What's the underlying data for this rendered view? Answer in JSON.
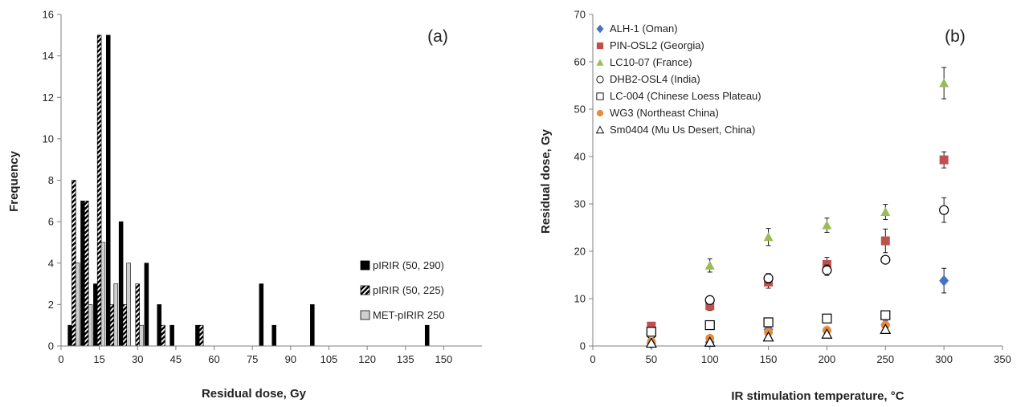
{
  "chart_data": [
    {
      "type": "bar",
      "panel_label": "(a)",
      "xlabel": "Residual dose, Gy",
      "ylabel": "Frequency",
      "xlim": [
        0,
        165
      ],
      "ylim": [
        0,
        16
      ],
      "xticks": [
        0,
        15,
        30,
        45,
        60,
        75,
        90,
        105,
        120,
        135,
        150
      ],
      "yticks": [
        0,
        2,
        4,
        6,
        8,
        10,
        12,
        14,
        16
      ],
      "legend_position": "right",
      "series": [
        {
          "name": "pIRIR (50, 290)",
          "color": "#000000",
          "pattern": "solid",
          "points": [
            [
              3.5,
              1
            ],
            [
              8.5,
              7
            ],
            [
              13.5,
              3
            ],
            [
              18.5,
              15
            ],
            [
              23.5,
              6
            ],
            [
              33.5,
              4
            ],
            [
              38.5,
              2
            ],
            [
              43.5,
              1
            ],
            [
              53.5,
              1
            ],
            [
              78.5,
              3
            ],
            [
              83.5,
              1
            ],
            [
              98.5,
              2
            ],
            [
              143.5,
              1
            ]
          ]
        },
        {
          "name": "pIRIR (50, 225)",
          "color": "#000000",
          "pattern": "hatched",
          "points": [
            [
              5,
              8
            ],
            [
              10,
              7
            ],
            [
              15,
              15
            ],
            [
              20,
              2
            ],
            [
              25,
              2
            ],
            [
              30,
              3
            ],
            [
              40,
              1
            ],
            [
              55,
              1
            ]
          ]
        },
        {
          "name": "MET-pIRIR 250",
          "color": "#d0d0d0",
          "pattern": "gray",
          "points": [
            [
              6.5,
              4
            ],
            [
              11.5,
              2
            ],
            [
              16.5,
              5
            ],
            [
              21.5,
              3
            ],
            [
              26.5,
              4
            ],
            [
              31.5,
              1
            ]
          ]
        }
      ]
    },
    {
      "type": "scatter",
      "panel_label": "(b)",
      "xlabel": "IR stimulation temperature, °C",
      "ylabel": "Residual dose, Gy",
      "xlim": [
        0,
        350
      ],
      "ylim": [
        0,
        70
      ],
      "xticks": [
        0,
        50,
        100,
        150,
        200,
        250,
        300,
        350
      ],
      "yticks": [
        0,
        10,
        20,
        30,
        40,
        50,
        60,
        70
      ],
      "legend_position": "top-left",
      "series": [
        {
          "name": "ALH-1 (Oman)",
          "marker": "diamond",
          "color": "#4472c4",
          "points": [
            [
              50,
              0.5,
              0.3
            ],
            [
              100,
              0.8,
              0.4
            ],
            [
              150,
              3.5,
              0.7
            ],
            [
              200,
              3.2,
              0.7
            ],
            [
              250,
              4.5,
              0.8
            ],
            [
              300,
              13.8,
              2.6
            ]
          ]
        },
        {
          "name": "PIN-OSL2 (Georgia)",
          "marker": "square-filled",
          "color": "#c0504d",
          "points": [
            [
              50,
              4.2,
              0.5
            ],
            [
              100,
              8.5,
              1.0
            ],
            [
              150,
              13.5,
              1.3
            ],
            [
              200,
              17.2,
              1.5
            ],
            [
              250,
              22.2,
              2.5
            ],
            [
              300,
              39.3,
              1.7
            ]
          ]
        },
        {
          "name": "LC10-07 (France)",
          "marker": "triangle-filled",
          "color": "#9bbb59",
          "points": [
            [
              50,
              3.2,
              0.5
            ],
            [
              100,
              17.0,
              1.4
            ],
            [
              150,
              23.0,
              1.8
            ],
            [
              200,
              25.5,
              1.5
            ],
            [
              250,
              28.3,
              1.6
            ],
            [
              300,
              55.5,
              3.3
            ]
          ]
        },
        {
          "name": "DHB2-OSL4 (India)",
          "marker": "circle-open",
          "color": "#000000",
          "points": [
            [
              50,
              2.5,
              0.4
            ],
            [
              100,
              9.7,
              0.8
            ],
            [
              150,
              14.3,
              1.0
            ],
            [
              200,
              16.0,
              1.1
            ],
            [
              250,
              18.2,
              0.8
            ],
            [
              300,
              28.7,
              2.6
            ]
          ]
        },
        {
          "name": "LC-004 (Chinese Loess Plateau)",
          "marker": "square-open",
          "color": "#000000",
          "points": [
            [
              50,
              3.0,
              0.4
            ],
            [
              100,
              4.4,
              0.5
            ],
            [
              150,
              5.0,
              0.6
            ],
            [
              200,
              5.8,
              0.7
            ],
            [
              250,
              6.5,
              0.7
            ]
          ]
        },
        {
          "name": "WG3 (Northeast China)",
          "marker": "circle-filled",
          "color": "#e88c3c",
          "points": [
            [
              50,
              0.9,
              0.2
            ],
            [
              100,
              1.6,
              0.3
            ],
            [
              150,
              2.9,
              0.4
            ],
            [
              200,
              3.3,
              0.4
            ],
            [
              250,
              4.4,
              0.5
            ]
          ]
        },
        {
          "name": "Sm0404 (Mu Us Desert, China)",
          "marker": "triangle-open",
          "color": "#000000",
          "points": [
            [
              50,
              0.6,
              0.2
            ],
            [
              100,
              0.8,
              0.2
            ],
            [
              150,
              1.9,
              0.3
            ],
            [
              200,
              2.5,
              0.4
            ],
            [
              250,
              3.5,
              0.5
            ]
          ]
        }
      ]
    }
  ]
}
